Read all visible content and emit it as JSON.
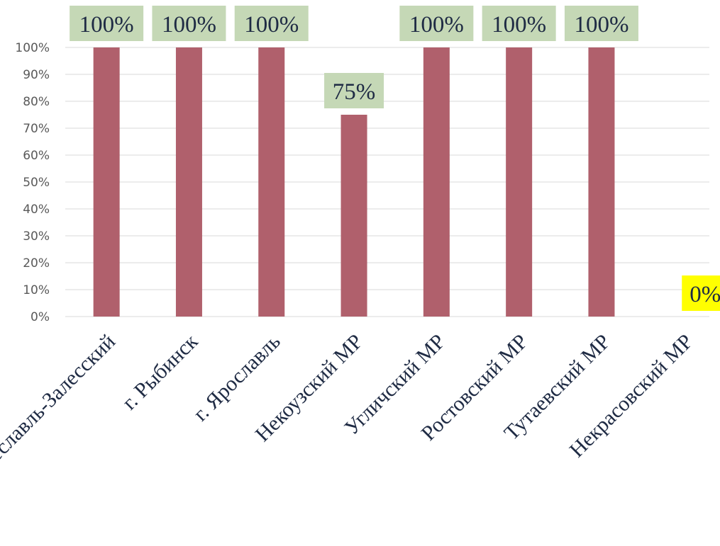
{
  "chart_data": {
    "type": "bar",
    "categories": [
      "г. Переславль-Залесский",
      "г. Рыбинск",
      "г. Ярославль",
      "Некоузский МР",
      "Угличский МР",
      "Ростовский МР",
      "Тутаевский МР",
      "Некрасовский МР"
    ],
    "values": [
      100,
      100,
      100,
      75,
      100,
      100,
      100,
      0
    ],
    "data_labels": [
      "100%",
      "100%",
      "100%",
      "75%",
      "100%",
      "100%",
      "100%",
      "0%"
    ],
    "y_ticks": [
      "0%",
      "10%",
      "20%",
      "30%",
      "40%",
      "50%",
      "60%",
      "70%",
      "80%",
      "90%",
      "100%"
    ],
    "ylim": [
      0,
      100
    ],
    "grid": true,
    "legend": "none",
    "title": "",
    "xlabel": "",
    "ylabel": "",
    "colors": {
      "bar": "#b0606c",
      "label_bg": "#c5d8b6",
      "label_bg_zero": "#ffff00",
      "gridline": "#d9d9d9"
    }
  }
}
